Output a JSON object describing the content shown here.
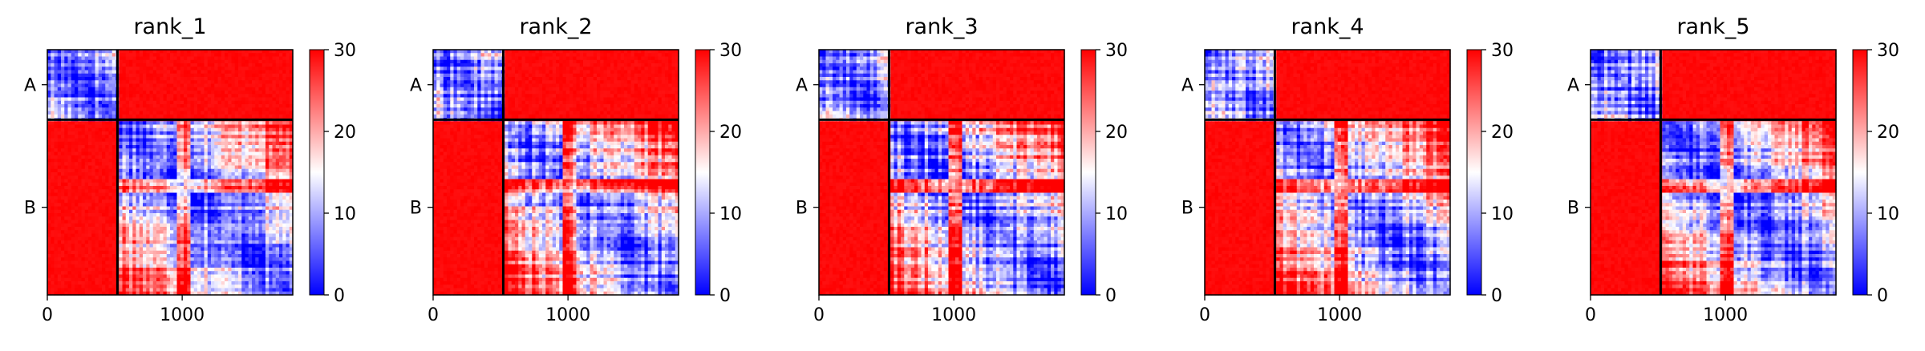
{
  "chart_data": {
    "type": "heatmap",
    "panel_titles": [
      "rank_1",
      "rank_2",
      "rank_3",
      "rank_4",
      "rank_5"
    ],
    "chain_labels": [
      "A",
      "B"
    ],
    "chain_boundary": 520,
    "residue_count": 1820,
    "x_ticks": [
      0,
      1000
    ],
    "x_tick_labels": [
      "0",
      "1000"
    ],
    "colorbar": {
      "vmin": 0,
      "vmax": 30,
      "ticks": [
        0,
        10,
        20,
        30
      ],
      "tick_labels": [
        "0",
        "10",
        "20",
        "30"
      ],
      "colormap": "bwr",
      "colors": {
        "low": "#0000ff",
        "mid": "#ffffff",
        "high": "#ff0000"
      }
    },
    "grid": false,
    "description_values": {
      "intra_chain_error": "low (blue, ~0-15)",
      "inter_chain_error": "high (red, ~30)"
    }
  }
}
